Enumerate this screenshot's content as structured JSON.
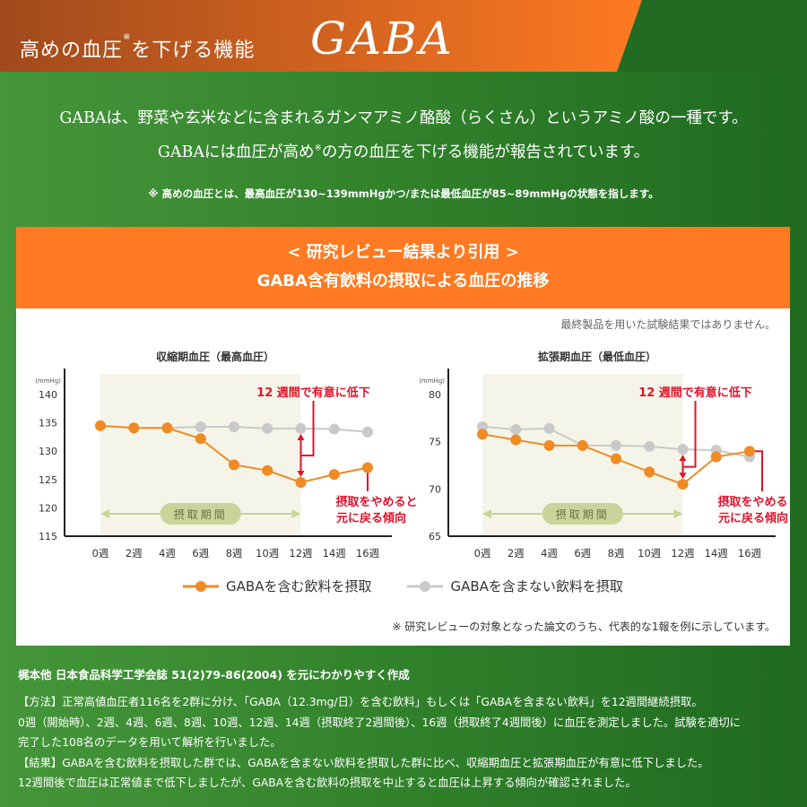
{
  "banner": {
    "title_prefix": "高めの血圧",
    "title_mark": "※",
    "title_suffix": "を下げる機能",
    "brand": "GABA",
    "colors": {
      "orange_start": "#a04a1c",
      "orange_end": "#ff7a22",
      "green": "#216b22"
    }
  },
  "intro": {
    "line1": "GABAは、野菜や玄米などに含まれるガンマアミノ酪酸（らくさん）というアミノ酸の一種です。",
    "line2_a": "GABAには血圧が高め",
    "line2_mark": "※",
    "line2_b": "の方の血圧を下げる機能が報告されています。",
    "footnote": "※ 高めの血圧とは、最高血圧が130~139mmHgかつ/または最低血圧が85~89mmHgの状態を指します。"
  },
  "card": {
    "header_line1": "< 研究レビュー結果より引用 >",
    "header_line2": "GABA含有飲料の摂取による血圧の推移",
    "disclaimer": "最終製品を用いた試験結果ではありません。",
    "legend": {
      "gaba": "GABAを含む飲料を摂取",
      "control": "GABAを含まない飲料を摂取"
    },
    "note": "※ 研究レビューの対象となった論文のうち、代表的な1報を例に示しています。",
    "colors": {
      "header": "#ff7a22",
      "gaba_line": "#f08a24",
      "control_line": "#c9c9c9",
      "annotation": "#e0132b",
      "period_fill": "#f4f5e8",
      "period_badge": "#c9d49a"
    }
  },
  "chart_data": [
    {
      "type": "line",
      "title": "収縮期血圧（最高血圧）",
      "ylabel": "(mmHg)",
      "ylim": [
        115,
        140
      ],
      "yticks": [
        "140",
        "135",
        "130",
        "125",
        "120",
        "115"
      ],
      "categories": [
        "0週",
        "2週",
        "4週",
        "6週",
        "8週",
        "10週",
        "12週",
        "14週",
        "16週"
      ],
      "series": [
        {
          "name": "GABAを含む飲料を摂取",
          "values": [
            134.5,
            134.1,
            134.1,
            132.2,
            127.6,
            126.6,
            124.5,
            125.9,
            127.1
          ]
        },
        {
          "name": "GABAを含まない飲料を摂取",
          "values": [
            134.5,
            134.1,
            134.1,
            134.3,
            134.3,
            134.0,
            134.0,
            133.9,
            133.4
          ]
        }
      ],
      "annotations": {
        "intake_period": "摂取期間",
        "significant": "12 週間で有意に低下",
        "rebound_line1": "摂取をやめると",
        "rebound_line2": "元に戻る傾向"
      },
      "grid": false
    },
    {
      "type": "line",
      "title": "拡張期血圧（最低血圧）",
      "ylabel": "(mmHg)",
      "ylim": [
        65,
        80
      ],
      "yticks": [
        "80",
        "75",
        "70",
        "65"
      ],
      "categories": [
        "0週",
        "2週",
        "4週",
        "6週",
        "8週",
        "10週",
        "12週",
        "14週",
        "16週"
      ],
      "series": [
        {
          "name": "GABAを含む飲料を摂取",
          "values": [
            75.8,
            75.2,
            74.6,
            74.6,
            73.2,
            71.8,
            70.5,
            73.4,
            74.0
          ]
        },
        {
          "name": "GABAを含まない飲料を摂取",
          "values": [
            76.6,
            76.3,
            76.4,
            74.6,
            74.6,
            74.5,
            74.2,
            74.1,
            73.4
          ]
        }
      ],
      "annotations": {
        "intake_period": "摂取期間",
        "significant": "12 週間で有意に低下",
        "rebound_line1": "摂取をやめると",
        "rebound_line2": "元に戻る傾向"
      },
      "grid": false
    }
  ],
  "citation": "梶本他 日本食品科学工学会誌 51(2)79-86(2004) を元にわかりやすく作成",
  "method": {
    "line1": "【方法】正常高値血圧者116名を2群に分け、「GABA（12.3mg/日）を含む飲料」もしくは「GABAを含まない飲料」を12週間継続摂取。",
    "line2": "0週（開始時）、2週、4週、6週、8週、10週、12週、14週（摂取終了2週間後）、16週（摂取終了4週間後）に血圧を測定しました。試験を適切に",
    "line3": "完了した108名のデータを用いて解析を行いました。",
    "line4": "【結果】GABAを含む飲料を摂取した群では、GABAを含まない飲料を摂取した群に比べ、収縮期血圧と拡張期血圧が有意に低下しました。",
    "line5": "12週間後で血圧は正常値まで低下しましたが、GABAを含む飲料の摂取を中止すると血圧は上昇する傾向が確認されました。"
  }
}
